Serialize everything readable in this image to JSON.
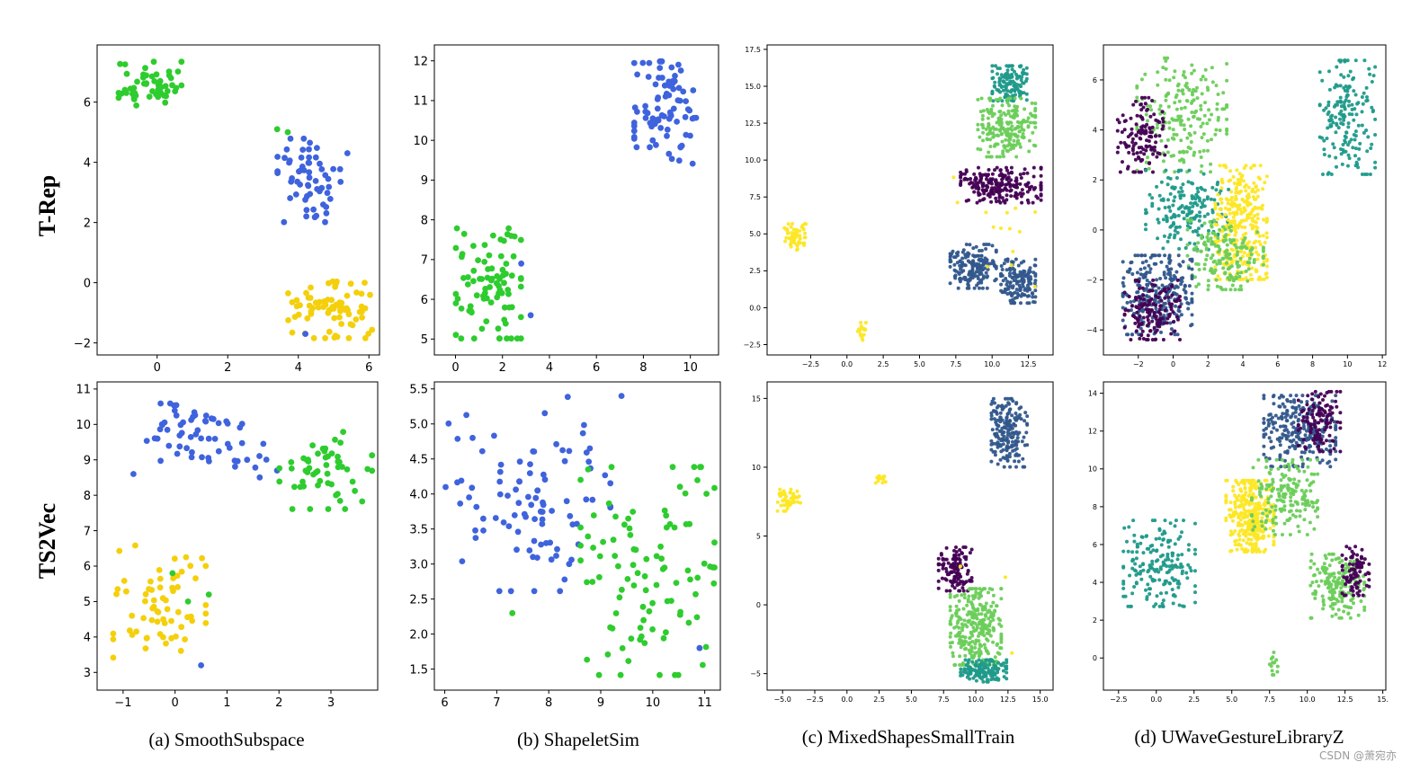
{
  "figure": {
    "row_labels": [
      "T-Rep",
      "TS2Vec"
    ],
    "captions": [
      "(a) SmoothSubspace",
      "(b) ShapeletSim",
      "(c) MixedShapesSmallTrain",
      "(d) UWaveGestureLibraryZ"
    ],
    "watermark": "CSDN @萧宛亦"
  },
  "chart_data": [
    {
      "type": "scatter",
      "row": "T-Rep",
      "dataset": "(a) SmoothSubspace",
      "xlim": [
        -1.7,
        6.3
      ],
      "ylim": [
        -2.4,
        7.9
      ],
      "xticks": [
        0,
        2,
        4,
        6
      ],
      "yticks": [
        -2,
        0,
        2,
        4,
        6
      ],
      "tick_labels_x": [
        "0",
        "2",
        "4",
        "6"
      ],
      "tick_labels_y": [
        "−2",
        "0",
        "2",
        "4",
        "6"
      ],
      "colors": {
        "green": "#2ecc2e",
        "blue": "#3f63dd",
        "yellow": "#f4d00c"
      },
      "clusters": [
        {
          "color": "green",
          "cx": -0.2,
          "cy": 6.6,
          "rx": 0.9,
          "ry": 0.75,
          "n": 55,
          "seed": 11
        },
        {
          "color": "blue",
          "cx": 4.4,
          "cy": 3.4,
          "rx": 1.0,
          "ry": 1.4,
          "n": 60,
          "seed": 12
        },
        {
          "color": "yellow",
          "cx": 4.9,
          "cy": -0.9,
          "rx": 1.2,
          "ry": 0.95,
          "n": 75,
          "seed": 13
        }
      ],
      "extra_points": [
        {
          "color": "green",
          "x": 3.4,
          "y": 5.1
        },
        {
          "color": "green",
          "x": 3.7,
          "y": 5.0
        },
        {
          "color": "blue",
          "x": 4.2,
          "y": -1.7
        }
      ]
    },
    {
      "type": "scatter",
      "row": "T-Rep",
      "dataset": "(b) ShapeletSim",
      "xlim": [
        -0.9,
        11.2
      ],
      "ylim": [
        4.6,
        12.4
      ],
      "xticks": [
        0,
        2,
        4,
        6,
        8,
        10
      ],
      "yticks": [
        5,
        6,
        7,
        8,
        9,
        10,
        11,
        12
      ],
      "tick_labels_x": [
        "0",
        "2",
        "4",
        "6",
        "8",
        "10"
      ],
      "tick_labels_y": [
        "5",
        "6",
        "7",
        "8",
        "9",
        "10",
        "11",
        "12"
      ],
      "colors": {
        "green": "#2ecc2e",
        "blue": "#3f63dd"
      },
      "clusters": [
        {
          "color": "blue",
          "cx": 9.0,
          "cy": 10.7,
          "rx": 1.4,
          "ry": 1.3,
          "n": 85,
          "seed": 21
        },
        {
          "color": "green",
          "cx": 1.4,
          "cy": 6.4,
          "rx": 1.4,
          "ry": 1.4,
          "n": 85,
          "seed": 22
        }
      ],
      "extra_points": [
        {
          "color": "blue",
          "x": 2.8,
          "y": 6.9
        },
        {
          "color": "blue",
          "x": 3.2,
          "y": 5.6
        }
      ]
    },
    {
      "type": "scatter",
      "row": "T-Rep",
      "dataset": "(c) MixedShapesSmallTrain",
      "xlim": [
        -5.5,
        14.2
      ],
      "ylim": [
        -3.2,
        17.8
      ],
      "xticks": [
        -2.5,
        0.0,
        2.5,
        5.0,
        7.5,
        10.0,
        12.5
      ],
      "yticks": [
        -2.5,
        0.0,
        2.5,
        5.0,
        7.5,
        10.0,
        12.5,
        15.0,
        17.5
      ],
      "tick_labels_x": [
        "−2.5",
        "0.0",
        "2.5",
        "5.0",
        "7.5",
        "10.0",
        "12.5"
      ],
      "tick_labels_y": [
        "−2.5",
        "0.0",
        "2.5",
        "5.0",
        "7.5",
        "10.0",
        "12.5",
        "15.0",
        "17.5"
      ],
      "colors": {
        "yellow": "#fde725",
        "lightgreen": "#6ccd5a",
        "teal": "#1f9a8a",
        "darkblue": "#31578c",
        "purple": "#440154"
      },
      "clusters": [
        {
          "color": "yellow",
          "cx": -3.6,
          "cy": 4.8,
          "rx": 0.8,
          "ry": 0.9,
          "n": 60,
          "seed": 31
        },
        {
          "color": "yellow",
          "cx": 1.1,
          "cy": -1.6,
          "rx": 0.35,
          "ry": 0.6,
          "n": 18,
          "seed": 32
        },
        {
          "color": "teal",
          "cx": 11.2,
          "cy": 15.2,
          "rx": 1.2,
          "ry": 1.2,
          "n": 140,
          "seed": 33
        },
        {
          "color": "lightgreen",
          "cx": 11.0,
          "cy": 12.2,
          "rx": 2.0,
          "ry": 2.0,
          "n": 220,
          "seed": 34
        },
        {
          "color": "purple",
          "cx": 10.6,
          "cy": 8.3,
          "rx": 2.8,
          "ry": 1.2,
          "n": 220,
          "seed": 35
        },
        {
          "color": "darkblue",
          "cx": 8.7,
          "cy": 2.8,
          "rx": 1.6,
          "ry": 1.5,
          "n": 170,
          "seed": 36
        },
        {
          "color": "darkblue",
          "cx": 11.8,
          "cy": 1.8,
          "rx": 1.2,
          "ry": 1.5,
          "n": 150,
          "seed": 37
        },
        {
          "color": "yellow",
          "cx": 10.0,
          "cy": 5.0,
          "rx": 3.0,
          "ry": 5.0,
          "n": 14,
          "seed": 38
        }
      ],
      "extra_points": []
    },
    {
      "type": "scatter",
      "row": "T-Rep",
      "dataset": "(d) UWaveGestureLibraryZ",
      "xlim": [
        -4.0,
        12.2
      ],
      "ylim": [
        -5.0,
        7.4
      ],
      "xticks": [
        -2,
        0,
        2,
        4,
        6,
        8,
        10,
        12
      ],
      "yticks": [
        -4,
        -2,
        0,
        2,
        4,
        6
      ],
      "tick_labels_x": [
        "−2",
        "0",
        "2",
        "4",
        "6",
        "8",
        "10",
        "12"
      ],
      "tick_labels_y": [
        "−4",
        "−2",
        "0",
        "2",
        "4",
        "6"
      ],
      "colors": {
        "yellow": "#fde725",
        "lightgreen": "#6ccd5a",
        "teal": "#1f9a8a",
        "darkblue": "#31578c",
        "purple": "#440154"
      },
      "clusters": [
        {
          "color": "teal",
          "cx": 10.0,
          "cy": 4.5,
          "rx": 1.6,
          "ry": 2.3,
          "n": 180,
          "seed": 41
        },
        {
          "color": "lightgreen",
          "cx": 0.5,
          "cy": 4.6,
          "rx": 2.6,
          "ry": 2.3,
          "n": 200,
          "seed": 42
        },
        {
          "color": "purple",
          "cx": -1.8,
          "cy": 3.8,
          "rx": 1.4,
          "ry": 1.5,
          "n": 130,
          "seed": 43
        },
        {
          "color": "teal",
          "cx": 0.8,
          "cy": 0.8,
          "rx": 2.4,
          "ry": 1.6,
          "n": 180,
          "seed": 44
        },
        {
          "color": "yellow",
          "cx": 3.9,
          "cy": 0.3,
          "rx": 1.5,
          "ry": 2.3,
          "n": 320,
          "seed": 45
        },
        {
          "color": "lightgreen",
          "cx": 3.0,
          "cy": -1.0,
          "rx": 2.2,
          "ry": 1.4,
          "n": 170,
          "seed": 46
        },
        {
          "color": "darkblue",
          "cx": -0.9,
          "cy": -2.6,
          "rx": 2.0,
          "ry": 1.6,
          "n": 280,
          "seed": 47
        },
        {
          "color": "purple",
          "cx": -1.2,
          "cy": -3.2,
          "rx": 1.6,
          "ry": 1.2,
          "n": 140,
          "seed": 48
        }
      ],
      "extra_points": []
    },
    {
      "type": "scatter",
      "row": "TS2Vec",
      "dataset": "(a) SmoothSubspace",
      "xlim": [
        -1.5,
        3.9
      ],
      "ylim": [
        2.5,
        11.2
      ],
      "xticks": [
        -1,
        0,
        1,
        2,
        3
      ],
      "yticks": [
        3,
        4,
        5,
        6,
        7,
        8,
        9,
        10,
        11
      ],
      "tick_labels_x": [
        "−1",
        "0",
        "1",
        "2",
        "3"
      ],
      "tick_labels_y": [
        "3",
        "4",
        "5",
        "6",
        "7",
        "8",
        "9",
        "10",
        "11"
      ],
      "colors": {
        "green": "#2ecc2e",
        "blue": "#3f63dd",
        "yellow": "#f4d00c"
      },
      "clusters": [
        {
          "color": "blue",
          "cx": 0.3,
          "cy": 9.7,
          "rx": 1.0,
          "ry": 0.9,
          "n": 55,
          "seed": 51
        },
        {
          "color": "blue",
          "cx": 1.6,
          "cy": 9.0,
          "rx": 0.4,
          "ry": 0.5,
          "n": 8,
          "seed": 52
        },
        {
          "color": "green",
          "cx": 2.9,
          "cy": 8.7,
          "rx": 0.9,
          "ry": 1.1,
          "n": 55,
          "seed": 53
        },
        {
          "color": "yellow",
          "cx": -0.3,
          "cy": 5.0,
          "rx": 0.9,
          "ry": 1.6,
          "n": 65,
          "seed": 54
        }
      ],
      "extra_points": [
        {
          "color": "green",
          "x": 0.25,
          "y": 5.0
        },
        {
          "color": "green",
          "x": 0.65,
          "y": 5.2
        },
        {
          "color": "green",
          "x": -0.05,
          "y": 5.8
        },
        {
          "color": "blue",
          "x": 0.5,
          "y": 3.2
        },
        {
          "color": "blue",
          "x": -0.8,
          "y": 8.6
        }
      ]
    },
    {
      "type": "scatter",
      "row": "TS2Vec",
      "dataset": "(b) ShapeletSim",
      "xlim": [
        5.8,
        11.3
      ],
      "ylim": [
        1.2,
        5.6
      ],
      "xticks": [
        6,
        7,
        8,
        9,
        10,
        11
      ],
      "yticks": [
        1.5,
        2.0,
        2.5,
        3.0,
        3.5,
        4.0,
        4.5,
        5.0,
        5.5
      ],
      "tick_labels_x": [
        "6",
        "7",
        "8",
        "9",
        "10",
        "11"
      ],
      "tick_labels_y": [
        "1.5",
        "2.0",
        "2.5",
        "3.0",
        "3.5",
        "4.0",
        "4.5",
        "5.0",
        "5.5"
      ],
      "colors": {
        "green": "#2ecc2e",
        "blue": "#3f63dd"
      },
      "clusters": [
        {
          "color": "blue",
          "cx": 7.6,
          "cy": 4.0,
          "rx": 1.6,
          "ry": 1.4,
          "n": 95,
          "seed": 61
        },
        {
          "color": "green",
          "cx": 9.9,
          "cy": 2.9,
          "rx": 1.3,
          "ry": 1.5,
          "n": 100,
          "seed": 62
        }
      ],
      "extra_points": [
        {
          "color": "blue",
          "x": 10.9,
          "y": 1.8
        },
        {
          "color": "blue",
          "x": 9.4,
          "y": 5.4
        },
        {
          "color": "green",
          "x": 7.3,
          "y": 2.3
        }
      ]
    },
    {
      "type": "scatter",
      "row": "TS2Vec",
      "dataset": "(c) MixedShapesSmallTrain",
      "xlim": [
        -6.2,
        16.0
      ],
      "ylim": [
        -6.2,
        16.2
      ],
      "xticks": [
        -5.0,
        -2.5,
        0.0,
        2.5,
        5.0,
        7.5,
        10.0,
        12.5,
        15.0
      ],
      "yticks": [
        -5,
        0,
        5,
        10,
        15
      ],
      "tick_labels_x": [
        "−5.0",
        "−2.5",
        "0.0",
        "2.5",
        "5.0",
        "7.5",
        "10.0",
        "12.5",
        "15.0"
      ],
      "tick_labels_y": [
        "−5",
        "0",
        "5",
        "10",
        "15"
      ],
      "colors": {
        "yellow": "#fde725",
        "lightgreen": "#6ccd5a",
        "teal": "#1f9a8a",
        "darkblue": "#31578c",
        "purple": "#440154"
      },
      "clusters": [
        {
          "color": "yellow",
          "cx": -4.5,
          "cy": 7.6,
          "rx": 0.9,
          "ry": 0.8,
          "n": 55,
          "seed": 71
        },
        {
          "color": "yellow",
          "cx": 2.6,
          "cy": 9.1,
          "rx": 0.5,
          "ry": 0.4,
          "n": 14,
          "seed": 72
        },
        {
          "color": "darkblue",
          "cx": 12.6,
          "cy": 12.5,
          "rx": 1.4,
          "ry": 2.5,
          "n": 190,
          "seed": 73
        },
        {
          "color": "purple",
          "cx": 8.4,
          "cy": 2.6,
          "rx": 1.3,
          "ry": 1.6,
          "n": 130,
          "seed": 74
        },
        {
          "color": "lightgreen",
          "cx": 10.0,
          "cy": -1.6,
          "rx": 2.0,
          "ry": 2.8,
          "n": 300,
          "seed": 75
        },
        {
          "color": "teal",
          "cx": 10.6,
          "cy": -4.8,
          "rx": 1.8,
          "ry": 0.8,
          "n": 140,
          "seed": 76
        }
      ],
      "extra_points": [
        {
          "color": "yellow",
          "x": 12.3,
          "y": 2.0
        },
        {
          "color": "yellow",
          "x": 12.8,
          "y": -3.5
        },
        {
          "color": "yellow",
          "x": 8.8,
          "y": 2.8
        }
      ]
    },
    {
      "type": "scatter",
      "row": "TS2Vec",
      "dataset": "(d) UWaveGestureLibraryZ",
      "xlim": [
        -3.5,
        15.2
      ],
      "ylim": [
        -1.7,
        14.6
      ],
      "xticks": [
        -2.5,
        0.0,
        2.5,
        5.0,
        7.5,
        10.0,
        12.5,
        15.0
      ],
      "yticks": [
        0,
        2,
        4,
        6,
        8,
        10,
        12,
        14
      ],
      "tick_labels_x": [
        "−2.5",
        "0.0",
        "2.5",
        "5.0",
        "7.5",
        "10.0",
        "12.5",
        "15."
      ],
      "tick_labels_y": [
        "0",
        "2",
        "4",
        "6",
        "8",
        "10",
        "12",
        "14"
      ],
      "colors": {
        "yellow": "#fde725",
        "lightgreen": "#6ccd5a",
        "teal": "#1f9a8a",
        "darkblue": "#31578c",
        "purple": "#440154"
      },
      "clusters": [
        {
          "color": "teal",
          "cx": 0.2,
          "cy": 5.0,
          "rx": 2.4,
          "ry": 2.3,
          "n": 190,
          "seed": 81
        },
        {
          "color": "darkblue",
          "cx": 9.5,
          "cy": 12.0,
          "rx": 2.4,
          "ry": 1.9,
          "n": 260,
          "seed": 82
        },
        {
          "color": "purple",
          "cx": 10.8,
          "cy": 12.5,
          "rx": 1.4,
          "ry": 1.6,
          "n": 120,
          "seed": 83
        },
        {
          "color": "yellow",
          "cx": 6.2,
          "cy": 7.5,
          "rx": 1.6,
          "ry": 1.9,
          "n": 320,
          "seed": 84
        },
        {
          "color": "lightgreen",
          "cx": 8.5,
          "cy": 8.5,
          "rx": 2.2,
          "ry": 2.0,
          "n": 180,
          "seed": 85
        },
        {
          "color": "lightgreen",
          "cx": 12.0,
          "cy": 3.8,
          "rx": 1.8,
          "ry": 1.7,
          "n": 170,
          "seed": 86
        },
        {
          "color": "purple",
          "cx": 13.2,
          "cy": 4.6,
          "rx": 0.9,
          "ry": 1.3,
          "n": 90,
          "seed": 87
        },
        {
          "color": "lightgreen",
          "cx": 7.8,
          "cy": -0.3,
          "rx": 0.3,
          "ry": 0.6,
          "n": 14,
          "seed": 88
        }
      ],
      "extra_points": []
    }
  ]
}
